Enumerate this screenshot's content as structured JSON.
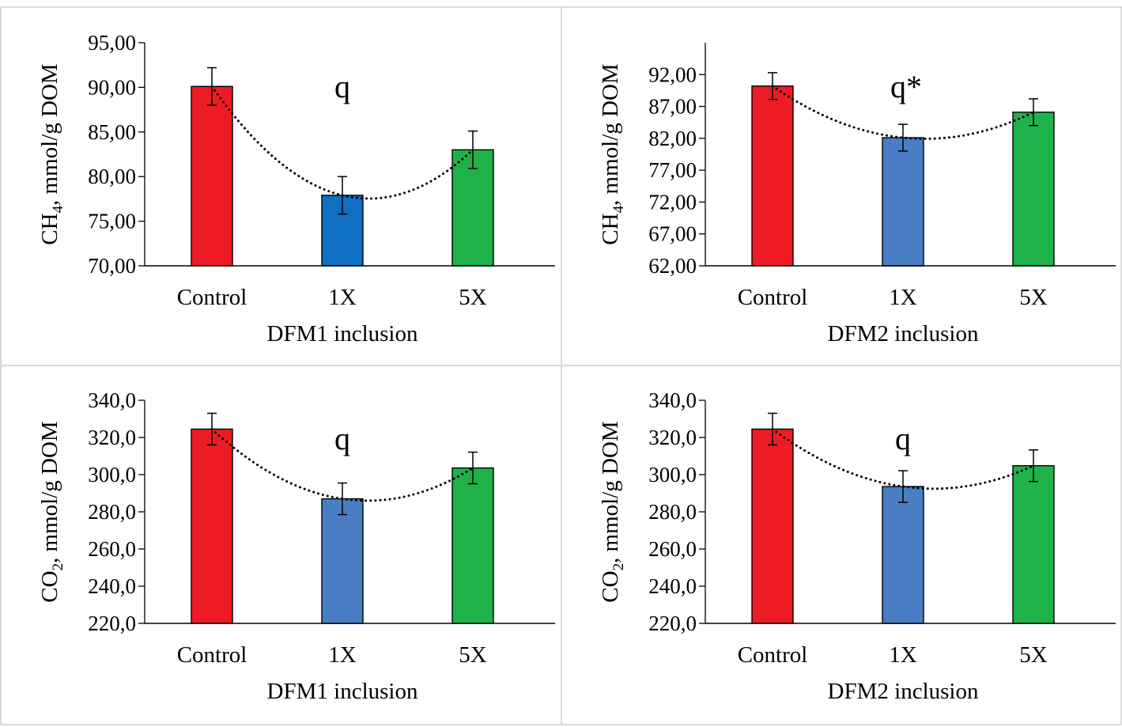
{
  "chart_data": [
    {
      "type": "bar",
      "categories": [
        "Control",
        "1X",
        "5X"
      ],
      "values": [
        90.1,
        77.9,
        83.0
      ],
      "errors": [
        2.1,
        2.1,
        2.1
      ],
      "colors": [
        "#ed1c24",
        "#0f6fc0",
        "#1fb24a"
      ],
      "xlabel": "DFM1 inclusion",
      "ylabel_main": "CH",
      "ylabel_sub": "4",
      "ylabel_rest": ", mmol/g DOM",
      "ylim": [
        70,
        95
      ],
      "yticks": [
        70,
        75,
        80,
        85,
        90,
        95
      ],
      "ytick_labels": [
        "70,00",
        "75,00",
        "80,00",
        "85,00",
        "90,00",
        "95,00"
      ],
      "annotation": "q",
      "trendline": "dotted quadratic"
    },
    {
      "type": "bar",
      "categories": [
        "Control",
        "1X",
        "5X"
      ],
      "values": [
        90.2,
        82.1,
        86.1
      ],
      "errors": [
        2.1,
        2.1,
        2.1
      ],
      "colors": [
        "#ed1c24",
        "#4a7ec4",
        "#1fb24a"
      ],
      "xlabel": "DFM2 inclusion",
      "ylabel_main": "CH",
      "ylabel_sub": "4",
      "ylabel_rest": ", mmol/g DOM",
      "ylim": [
        62,
        97
      ],
      "yticks": [
        62,
        67,
        72,
        77,
        82,
        87,
        92
      ],
      "ytick_labels": [
        "62,00",
        "67,00",
        "72,00",
        "77,00",
        "82,00",
        "87,00",
        "92,00"
      ],
      "annotation": "q*",
      "trendline": "dotted quadratic"
    },
    {
      "type": "bar",
      "categories": [
        "Control",
        "1X",
        "5X"
      ],
      "values": [
        324.5,
        287.0,
        303.6
      ],
      "errors": [
        8.5,
        8.5,
        8.5
      ],
      "colors": [
        "#ed1c24",
        "#4a7ec4",
        "#1fb24a"
      ],
      "xlabel": "DFM1 inclusion",
      "ylabel_main": "CO",
      "ylabel_sub": "2",
      "ylabel_rest": ", mmol/g DOM",
      "ylim": [
        220,
        340
      ],
      "yticks": [
        220,
        240,
        260,
        280,
        300,
        320,
        340
      ],
      "ytick_labels": [
        "220,0",
        "240,0",
        "260,0",
        "280,0",
        "300,0",
        "320,0",
        "340,0"
      ],
      "annotation": "q",
      "trendline": "dotted quadratic"
    },
    {
      "type": "bar",
      "categories": [
        "Control",
        "1X",
        "5X"
      ],
      "values": [
        324.5,
        293.6,
        304.8
      ],
      "errors": [
        8.5,
        8.5,
        8.5
      ],
      "colors": [
        "#ed1c24",
        "#4a7ec4",
        "#1fb24a"
      ],
      "xlabel": "DFM2 inclusion",
      "ylabel_main": "CO",
      "ylabel_sub": "2",
      "ylabel_rest": ", mmol/g DOM",
      "ylim": [
        220,
        340
      ],
      "yticks": [
        220,
        240,
        260,
        280,
        300,
        320,
        340
      ],
      "ytick_labels": [
        "220,0",
        "240,0",
        "260,0",
        "280,0",
        "300,0",
        "320,0",
        "340,0"
      ],
      "annotation": "q",
      "trendline": "dotted quadratic"
    }
  ]
}
